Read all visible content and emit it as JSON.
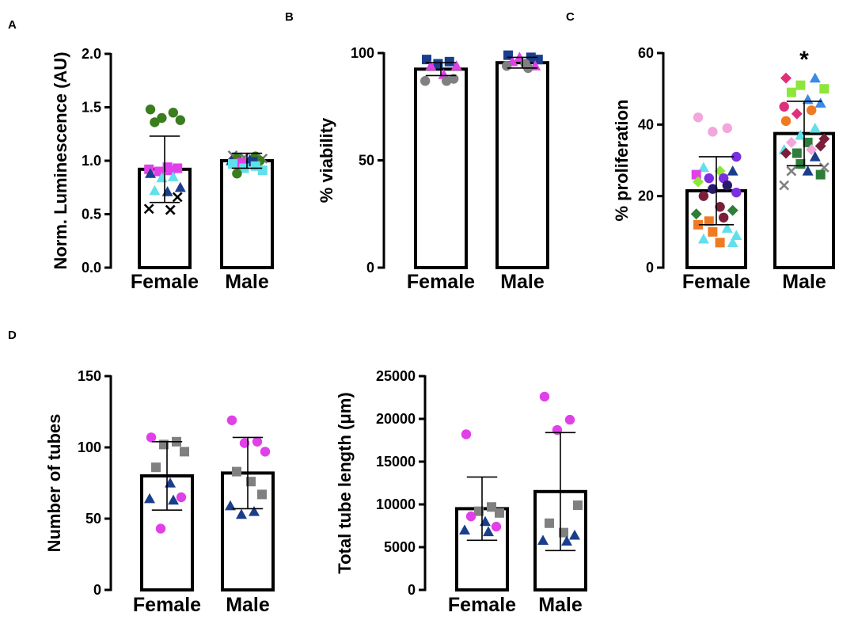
{
  "figure": {
    "panels": [
      {
        "id": "A",
        "letter": "A"
      },
      {
        "id": "B",
        "letter": "B"
      },
      {
        "id": "C",
        "letter": "C"
      },
      {
        "id": "D",
        "letter": "D"
      },
      {
        "id": "D2",
        "letter": ""
      }
    ]
  },
  "chart_data": [
    {
      "panel": "A",
      "type": "bar",
      "categories": [
        "Female",
        "Male"
      ],
      "ylabel": "Norm. Luminescence (AU)",
      "xlabel": "",
      "ylim": [
        0,
        2.0
      ],
      "yticks": [
        0.0,
        0.5,
        1.0,
        1.5,
        2.0
      ],
      "tick_labels": [
        "0.0",
        "0.5",
        "1.0",
        "1.5",
        "2.0"
      ],
      "values": [
        0.92,
        1.0
      ],
      "sd": [
        0.31,
        0.07
      ],
      "significance": [],
      "points": [
        [
          {
            "v": 1.48,
            "shape": "circle",
            "color": "#3a7d1e"
          },
          {
            "v": 1.45,
            "shape": "circle",
            "color": "#3a7d1e"
          },
          {
            "v": 1.4,
            "shape": "circle",
            "color": "#3a7d1e"
          },
          {
            "v": 1.38,
            "shape": "circle",
            "color": "#3a7d1e"
          },
          {
            "v": 1.36,
            "shape": "circle",
            "color": "#3a7d1e"
          },
          {
            "v": 0.94,
            "shape": "square",
            "color": "#e040e8"
          },
          {
            "v": 0.93,
            "shape": "square",
            "color": "#e040e8"
          },
          {
            "v": 0.91,
            "shape": "square",
            "color": "#e040e8"
          },
          {
            "v": 0.9,
            "shape": "square",
            "color": "#e040e8"
          },
          {
            "v": 0.92,
            "shape": "square",
            "color": "#e040e8"
          },
          {
            "v": 0.88,
            "shape": "triangle",
            "color": "#1a3e8c"
          },
          {
            "v": 0.85,
            "shape": "triangle",
            "color": "#5fe0ea"
          },
          {
            "v": 0.84,
            "shape": "triangle",
            "color": "#5fe0ea"
          },
          {
            "v": 0.75,
            "shape": "triangle",
            "color": "#1a3e8c"
          },
          {
            "v": 0.72,
            "shape": "triangle",
            "color": "#5fe0ea"
          },
          {
            "v": 0.71,
            "shape": "triangle",
            "color": "#1a3e8c"
          },
          {
            "v": 0.66,
            "shape": "cross",
            "color": "#000000"
          },
          {
            "v": 0.55,
            "shape": "cross",
            "color": "#000000"
          },
          {
            "v": 0.54,
            "shape": "cross",
            "color": "#000000"
          }
        ],
        [
          {
            "v": 1.05,
            "shape": "cross",
            "color": "#777777"
          },
          {
            "v": 1.03,
            "shape": "cross",
            "color": "#777777"
          },
          {
            "v": 1.02,
            "shape": "cross",
            "color": "#777777"
          },
          {
            "v": 1.04,
            "shape": "circle",
            "color": "#3a7d1e"
          },
          {
            "v": 1.02,
            "shape": "circle",
            "color": "#3a7d1e"
          },
          {
            "v": 1.0,
            "shape": "circle",
            "color": "#3a7d1e"
          },
          {
            "v": 0.88,
            "shape": "circle",
            "color": "#3a7d1e"
          },
          {
            "v": 1.01,
            "shape": "triangle",
            "color": "#1a3e8c"
          },
          {
            "v": 1.0,
            "shape": "triangle",
            "color": "#1a3e8c"
          },
          {
            "v": 0.99,
            "shape": "square",
            "color": "#1a3e8c"
          },
          {
            "v": 0.98,
            "shape": "square",
            "color": "#e040e8"
          },
          {
            "v": 0.97,
            "shape": "square",
            "color": "#5fe0ea"
          },
          {
            "v": 0.95,
            "shape": "square",
            "color": "#5fe0ea"
          },
          {
            "v": 0.93,
            "shape": "square",
            "color": "#5fe0ea"
          },
          {
            "v": 0.91,
            "shape": "square",
            "color": "#5fe0ea"
          }
        ]
      ]
    },
    {
      "panel": "B",
      "type": "bar",
      "categories": [
        "Female",
        "Male"
      ],
      "ylabel": "% viability",
      "xlabel": "",
      "ylim": [
        0,
        100
      ],
      "yticks": [
        0,
        50,
        100
      ],
      "tick_labels": [
        "0",
        "50",
        "100"
      ],
      "values": [
        92.5,
        95.5
      ],
      "sd": [
        3,
        2.5
      ],
      "significance": [],
      "points": [
        [
          {
            "v": 97,
            "shape": "square",
            "color": "#1a3e8c"
          },
          {
            "v": 96,
            "shape": "square",
            "color": "#1a3e8c"
          },
          {
            "v": 95,
            "shape": "square",
            "color": "#1a3e8c"
          },
          {
            "v": 94,
            "shape": "triangle",
            "color": "#e040e8"
          },
          {
            "v": 94,
            "shape": "triangle",
            "color": "#e040e8"
          },
          {
            "v": 90,
            "shape": "triangle",
            "color": "#e040e8"
          },
          {
            "v": 88,
            "shape": "circle",
            "color": "#808080"
          },
          {
            "v": 87,
            "shape": "circle",
            "color": "#808080"
          },
          {
            "v": 87,
            "shape": "circle",
            "color": "#808080"
          }
        ],
        [
          {
            "v": 99,
            "shape": "square",
            "color": "#1a3e8c"
          },
          {
            "v": 98,
            "shape": "square",
            "color": "#1a3e8c"
          },
          {
            "v": 97,
            "shape": "square",
            "color": "#1a3e8c"
          },
          {
            "v": 98,
            "shape": "triangle",
            "color": "#e040e8"
          },
          {
            "v": 96,
            "shape": "triangle",
            "color": "#e040e8"
          },
          {
            "v": 94,
            "shape": "triangle",
            "color": "#e040e8"
          },
          {
            "v": 95,
            "shape": "circle",
            "color": "#808080"
          },
          {
            "v": 94,
            "shape": "circle",
            "color": "#808080"
          },
          {
            "v": 93,
            "shape": "circle",
            "color": "#808080"
          }
        ]
      ]
    },
    {
      "panel": "C",
      "type": "bar",
      "categories": [
        "Female",
        "Male"
      ],
      "ylabel": "% proliferation",
      "xlabel": "",
      "ylim": [
        0,
        60
      ],
      "yticks": [
        0,
        20,
        40,
        60
      ],
      "tick_labels": [
        "0",
        "20",
        "40",
        "60"
      ],
      "values": [
        21.5,
        37.5
      ],
      "sd": [
        9.5,
        9
      ],
      "significance": [
        "",
        "*"
      ],
      "points": [
        [
          {
            "v": 42,
            "shape": "circle",
            "color": "#f2a6dc"
          },
          {
            "v": 39,
            "shape": "circle",
            "color": "#f2a6dc"
          },
          {
            "v": 38,
            "shape": "circle",
            "color": "#f2a6dc"
          },
          {
            "v": 31,
            "shape": "circle",
            "color": "#7b2fe0"
          },
          {
            "v": 28,
            "shape": "triangle",
            "color": "#5fe0ea"
          },
          {
            "v": 27,
            "shape": "diamond",
            "color": "#8ee63a"
          },
          {
            "v": 27,
            "shape": "triangle",
            "color": "#1a3e8c"
          },
          {
            "v": 26,
            "shape": "square",
            "color": "#e040e8"
          },
          {
            "v": 25,
            "shape": "circle",
            "color": "#7b2fe0"
          },
          {
            "v": 25,
            "shape": "circle",
            "color": "#7b2fe0"
          },
          {
            "v": 24,
            "shape": "diamond",
            "color": "#8ee63a"
          },
          {
            "v": 23,
            "shape": "circle",
            "color": "#2a1a6e"
          },
          {
            "v": 22,
            "shape": "circle",
            "color": "#2a1a6e"
          },
          {
            "v": 21,
            "shape": "circle",
            "color": "#7b2fe0"
          },
          {
            "v": 20,
            "shape": "circle",
            "color": "#7b1e3a"
          },
          {
            "v": 17,
            "shape": "circle",
            "color": "#7b1e3a"
          },
          {
            "v": 16,
            "shape": "diamond",
            "color": "#2e7d3a"
          },
          {
            "v": 15,
            "shape": "diamond",
            "color": "#2e7d3a"
          },
          {
            "v": 14,
            "shape": "circle",
            "color": "#7b1e3a"
          },
          {
            "v": 13,
            "shape": "square",
            "color": "#f07a22"
          },
          {
            "v": 12,
            "shape": "square",
            "color": "#f07a22"
          },
          {
            "v": 11,
            "shape": "triangle",
            "color": "#5fe0ea"
          },
          {
            "v": 10,
            "shape": "square",
            "color": "#f07a22"
          },
          {
            "v": 9,
            "shape": "triangle",
            "color": "#5fe0ea"
          },
          {
            "v": 8,
            "shape": "triangle",
            "color": "#5fe0ea"
          },
          {
            "v": 7,
            "shape": "square",
            "color": "#f07a22"
          },
          {
            "v": 7,
            "shape": "triangle",
            "color": "#5fe0ea"
          }
        ],
        [
          {
            "v": 53,
            "shape": "diamond",
            "color": "#e0307a"
          },
          {
            "v": 53,
            "shape": "triangle",
            "color": "#3a8ae8"
          },
          {
            "v": 51,
            "shape": "square",
            "color": "#8ee63a"
          },
          {
            "v": 50,
            "shape": "square",
            "color": "#8ee63a"
          },
          {
            "v": 49,
            "shape": "square",
            "color": "#8ee63a"
          },
          {
            "v": 47,
            "shape": "triangle",
            "color": "#3a8ae8"
          },
          {
            "v": 46,
            "shape": "triangle",
            "color": "#3a8ae8"
          },
          {
            "v": 45,
            "shape": "circle",
            "color": "#e0307a"
          },
          {
            "v": 44,
            "shape": "circle",
            "color": "#f07a22"
          },
          {
            "v": 43,
            "shape": "diamond",
            "color": "#e0307a"
          },
          {
            "v": 41,
            "shape": "circle",
            "color": "#f07a22"
          },
          {
            "v": 39,
            "shape": "triangle",
            "color": "#5fe0ea"
          },
          {
            "v": 37,
            "shape": "triangle",
            "color": "#5fe0ea"
          },
          {
            "v": 36,
            "shape": "diamond",
            "color": "#7b1e3a"
          },
          {
            "v": 35,
            "shape": "diamond",
            "color": "#f2a6dc"
          },
          {
            "v": 35,
            "shape": "square",
            "color": "#2e7d3a"
          },
          {
            "v": 34,
            "shape": "diamond",
            "color": "#7b1e3a"
          },
          {
            "v": 33,
            "shape": "triangle",
            "color": "#5fe0ea"
          },
          {
            "v": 33,
            "shape": "diamond",
            "color": "#f2a6dc"
          },
          {
            "v": 32,
            "shape": "square",
            "color": "#2e7d3a"
          },
          {
            "v": 32,
            "shape": "diamond",
            "color": "#7b1e3a"
          },
          {
            "v": 31,
            "shape": "triangle",
            "color": "#1a3e8c"
          },
          {
            "v": 29,
            "shape": "square",
            "color": "#2e7d3a"
          },
          {
            "v": 28,
            "shape": "cross",
            "color": "#808080"
          },
          {
            "v": 27,
            "shape": "cross",
            "color": "#808080"
          },
          {
            "v": 27,
            "shape": "triangle",
            "color": "#1a3e8c"
          },
          {
            "v": 26,
            "shape": "square",
            "color": "#2e7d3a"
          },
          {
            "v": 23,
            "shape": "cross",
            "color": "#808080"
          }
        ]
      ]
    },
    {
      "panel": "D",
      "type": "bar",
      "categories": [
        "Female",
        "Male"
      ],
      "ylabel": "Number of tubes",
      "xlabel": "",
      "ylim": [
        0,
        150
      ],
      "yticks": [
        0,
        50,
        100,
        150
      ],
      "tick_labels": [
        "0",
        "50",
        "100",
        "150"
      ],
      "values": [
        80,
        82
      ],
      "sd": [
        24,
        25
      ],
      "significance": [],
      "points": [
        [
          {
            "v": 107,
            "shape": "circle",
            "color": "#e040e8"
          },
          {
            "v": 104,
            "shape": "square",
            "color": "#808080"
          },
          {
            "v": 102,
            "shape": "square",
            "color": "#808080"
          },
          {
            "v": 97,
            "shape": "square",
            "color": "#808080"
          },
          {
            "v": 86,
            "shape": "square",
            "color": "#808080"
          },
          {
            "v": 75,
            "shape": "triangle",
            "color": "#1a3e8c"
          },
          {
            "v": 65,
            "shape": "circle",
            "color": "#e040e8"
          },
          {
            "v": 64,
            "shape": "triangle",
            "color": "#1a3e8c"
          },
          {
            "v": 63,
            "shape": "triangle",
            "color": "#1a3e8c"
          },
          {
            "v": 43,
            "shape": "circle",
            "color": "#e040e8"
          }
        ],
        [
          {
            "v": 119,
            "shape": "circle",
            "color": "#e040e8"
          },
          {
            "v": 104,
            "shape": "circle",
            "color": "#e040e8"
          },
          {
            "v": 103,
            "shape": "circle",
            "color": "#e040e8"
          },
          {
            "v": 97,
            "shape": "circle",
            "color": "#e040e8"
          },
          {
            "v": 83,
            "shape": "square",
            "color": "#808080"
          },
          {
            "v": 76,
            "shape": "square",
            "color": "#808080"
          },
          {
            "v": 67,
            "shape": "square",
            "color": "#808080"
          },
          {
            "v": 59,
            "shape": "triangle",
            "color": "#1a3e8c"
          },
          {
            "v": 55,
            "shape": "triangle",
            "color": "#1a3e8c"
          },
          {
            "v": 53,
            "shape": "triangle",
            "color": "#1a3e8c"
          }
        ]
      ]
    },
    {
      "panel": "D2",
      "type": "bar",
      "categories": [
        "Female",
        "Male"
      ],
      "ylabel": "Total tube length (μm)",
      "xlabel": "",
      "ylim": [
        0,
        25000
      ],
      "yticks": [
        0,
        5000,
        10000,
        15000,
        20000,
        25000
      ],
      "tick_labels": [
        "0",
        "5000",
        "10000",
        "15000",
        "20000",
        "25000"
      ],
      "values": [
        9500,
        11500
      ],
      "sd": [
        3700,
        6900
      ],
      "significance": [],
      "points": [
        [
          {
            "v": 18200,
            "shape": "circle",
            "color": "#e040e8"
          },
          {
            "v": 9700,
            "shape": "square",
            "color": "#808080"
          },
          {
            "v": 9200,
            "shape": "square",
            "color": "#808080"
          },
          {
            "v": 9000,
            "shape": "square",
            "color": "#808080"
          },
          {
            "v": 8600,
            "shape": "circle",
            "color": "#e040e8"
          },
          {
            "v": 8000,
            "shape": "triangle",
            "color": "#1a3e8c"
          },
          {
            "v": 7400,
            "shape": "circle",
            "color": "#e040e8"
          },
          {
            "v": 7000,
            "shape": "triangle",
            "color": "#1a3e8c"
          },
          {
            "v": 6800,
            "shape": "triangle",
            "color": "#1a3e8c"
          }
        ],
        [
          {
            "v": 22600,
            "shape": "circle",
            "color": "#e040e8"
          },
          {
            "v": 19900,
            "shape": "circle",
            "color": "#e040e8"
          },
          {
            "v": 18700,
            "shape": "circle",
            "color": "#e040e8"
          },
          {
            "v": 9900,
            "shape": "square",
            "color": "#808080"
          },
          {
            "v": 7800,
            "shape": "square",
            "color": "#808080"
          },
          {
            "v": 6700,
            "shape": "square",
            "color": "#808080"
          },
          {
            "v": 6400,
            "shape": "triangle",
            "color": "#1a3e8c"
          },
          {
            "v": 5800,
            "shape": "triangle",
            "color": "#1a3e8c"
          },
          {
            "v": 5700,
            "shape": "triangle",
            "color": "#1a3e8c"
          }
        ]
      ]
    }
  ]
}
